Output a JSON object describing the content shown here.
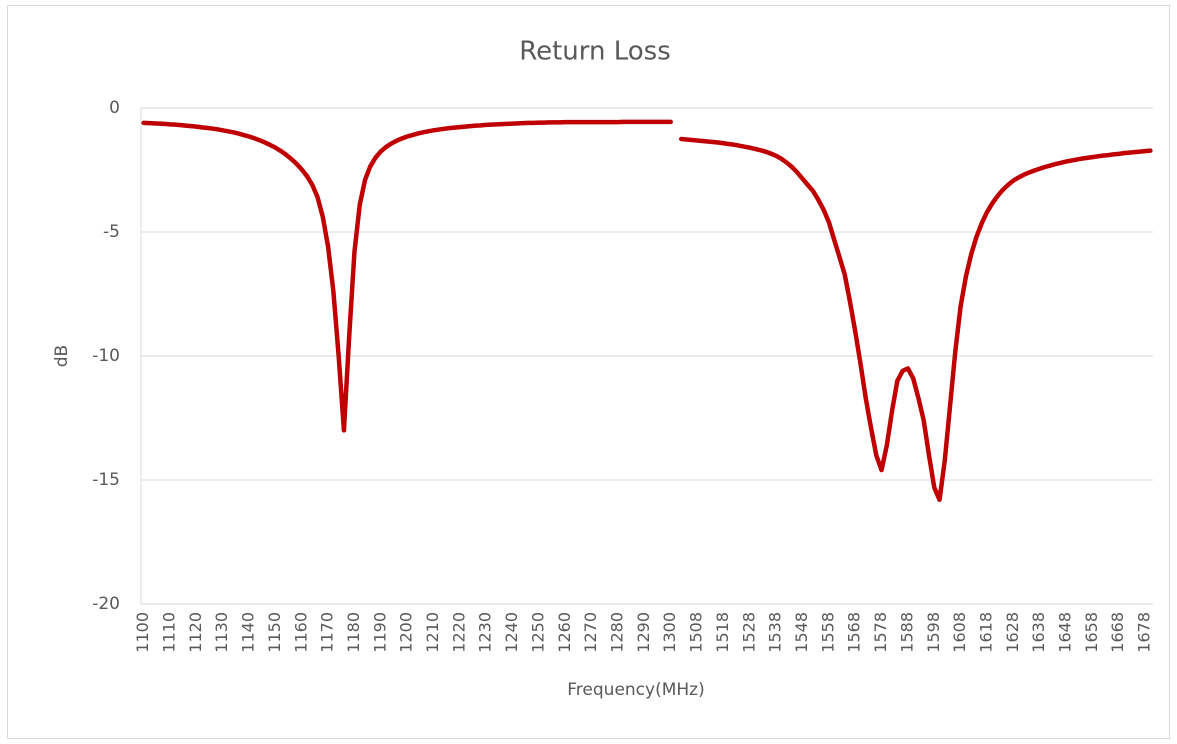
{
  "chart_data": {
    "type": "line",
    "title": "Return Loss",
    "x_label": "Frequency(MHz)",
    "y_label": "dB",
    "categories": [
      "1100",
      null,
      null,
      null,
      null,
      "1110",
      null,
      null,
      null,
      null,
      "1120",
      null,
      null,
      null,
      null,
      "1130",
      null,
      null,
      null,
      null,
      "1140",
      null,
      null,
      null,
      null,
      "1150",
      null,
      null,
      null,
      null,
      "1160",
      null,
      null,
      null,
      null,
      "1170",
      null,
      null,
      null,
      null,
      "1180",
      null,
      null,
      null,
      null,
      "1190",
      null,
      null,
      null,
      null,
      "1200",
      null,
      null,
      null,
      null,
      "1210",
      null,
      null,
      null,
      null,
      "1220",
      null,
      null,
      null,
      null,
      "1230",
      null,
      null,
      null,
      null,
      "1240",
      null,
      null,
      null,
      null,
      "1250",
      null,
      null,
      null,
      null,
      "1260",
      null,
      null,
      null,
      null,
      "1270",
      null,
      null,
      null,
      null,
      "1280",
      null,
      null,
      null,
      null,
      "1290",
      null,
      null,
      null,
      null,
      "1300",
      null,
      null,
      null,
      null,
      "1508",
      null,
      null,
      null,
      null,
      "1518",
      null,
      null,
      null,
      null,
      "1528",
      null,
      null,
      null,
      null,
      "1538",
      null,
      null,
      null,
      null,
      "1548",
      null,
      null,
      null,
      null,
      "1558",
      null,
      null,
      null,
      null,
      "1568",
      null,
      null,
      null,
      null,
      "1578",
      null,
      null,
      null,
      null,
      "1588",
      null,
      null,
      null,
      null,
      "1598",
      null,
      null,
      null,
      null,
      "1608",
      null,
      null,
      null,
      null,
      "1618",
      null,
      null,
      null,
      null,
      "1628",
      null,
      null,
      null,
      null,
      "1638",
      null,
      null,
      null,
      null,
      "1648",
      null,
      null,
      null,
      null,
      "1658",
      null,
      null,
      null,
      null,
      "1668",
      null,
      null,
      null,
      null,
      "1678",
      null
    ],
    "series": [
      {
        "color": "#c00000",
        "values": [
          -0.6,
          -0.61,
          -0.62,
          -0.63,
          -0.64,
          -0.66,
          -0.67,
          -0.69,
          -0.71,
          -0.73,
          -0.75,
          -0.78,
          -0.8,
          -0.83,
          -0.86,
          -0.9,
          -0.94,
          -0.98,
          -1.03,
          -1.09,
          -1.15,
          -1.22,
          -1.3,
          -1.39,
          -1.49,
          -1.6,
          -1.73,
          -1.88,
          -2.05,
          -2.25,
          -2.48,
          -2.75,
          -3.1,
          -3.6,
          -4.4,
          -5.6,
          -7.4,
          -10.0,
          -13.0,
          -9.2,
          -5.8,
          -3.9,
          -2.9,
          -2.35,
          -2.0,
          -1.75,
          -1.57,
          -1.43,
          -1.32,
          -1.23,
          -1.15,
          -1.09,
          -1.03,
          -0.98,
          -0.94,
          -0.9,
          -0.87,
          -0.84,
          -0.81,
          -0.79,
          -0.77,
          -0.75,
          -0.73,
          -0.71,
          -0.7,
          -0.68,
          -0.67,
          -0.66,
          -0.65,
          -0.64,
          -0.63,
          -0.62,
          -0.61,
          -0.6,
          -0.6,
          -0.59,
          -0.59,
          -0.58,
          -0.58,
          -0.58,
          -0.57,
          -0.57,
          -0.57,
          -0.57,
          -0.57,
          -0.57,
          -0.57,
          -0.57,
          -0.57,
          -0.57,
          -0.57,
          -0.56,
          -0.56,
          -0.56,
          -0.56,
          -0.56,
          -0.56,
          -0.56,
          -0.56,
          -0.56,
          -0.56,
          null,
          -1.25,
          -1.27,
          -1.29,
          -1.31,
          -1.33,
          -1.35,
          -1.37,
          -1.39,
          -1.42,
          -1.45,
          -1.48,
          -1.52,
          -1.56,
          -1.6,
          -1.65,
          -1.7,
          -1.76,
          -1.84,
          -1.93,
          -2.05,
          -2.2,
          -2.38,
          -2.6,
          -2.85,
          -3.1,
          -3.35,
          -3.7,
          -4.1,
          -4.6,
          -5.3,
          -6.0,
          -6.7,
          -7.8,
          -9.0,
          -10.3,
          -11.7,
          -12.9,
          -14.0,
          -14.6,
          -13.6,
          -12.2,
          -11.0,
          -10.6,
          -10.5,
          -10.9,
          -11.7,
          -12.6,
          -14.0,
          -15.3,
          -15.8,
          -14.2,
          -12.0,
          -9.8,
          -8.0,
          -6.8,
          -5.9,
          -5.2,
          -4.65,
          -4.2,
          -3.85,
          -3.55,
          -3.3,
          -3.1,
          -2.93,
          -2.8,
          -2.69,
          -2.6,
          -2.52,
          -2.45,
          -2.38,
          -2.32,
          -2.26,
          -2.21,
          -2.16,
          -2.12,
          -2.08,
          -2.04,
          -2.01,
          -1.98,
          -1.95,
          -1.92,
          -1.9,
          -1.87,
          -1.85,
          -1.82,
          -1.8,
          -1.78,
          -1.76,
          -1.74,
          -1.72
        ]
      }
    ],
    "ylim": [
      -20,
      0
    ],
    "yticks": [
      0,
      -5,
      -10,
      -15,
      -20
    ],
    "grid": true
  }
}
